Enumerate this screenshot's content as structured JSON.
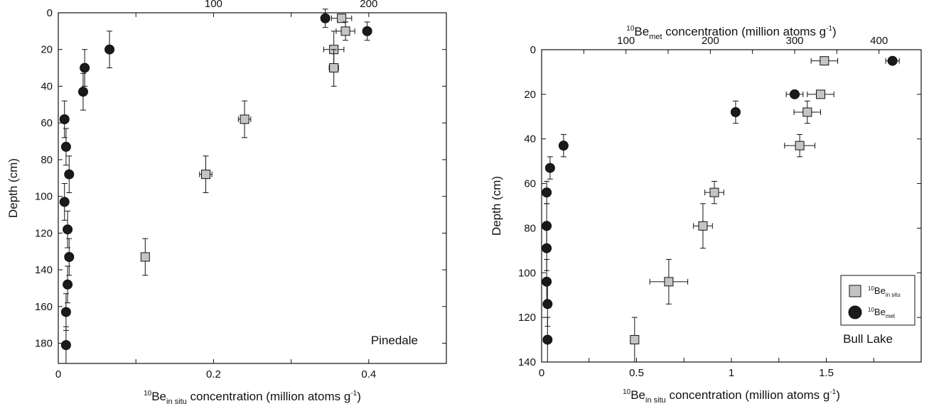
{
  "chart_data": [
    {
      "type": "scatter",
      "annotation": "Pinedale",
      "ylabel": "Depth (cm)",
      "xlabel": {
        "sup": "10",
        "base": "Be",
        "sub": "in situ",
        "text": " concentration (million atoms g",
        "exp": "-1",
        "close": ")"
      },
      "x2label": {
        "sup": "10",
        "base": "Be",
        "sub": "met",
        "text": " concentration (million atoms g",
        "exp": "-1",
        "close": ")"
      },
      "xlim": [
        0,
        0.5
      ],
      "x2lim": [
        0,
        250
      ],
      "ylim": [
        0,
        191
      ],
      "y_inverted": true,
      "x_ticks": [
        "0",
        "0.2",
        "0.4"
      ],
      "x_tick_values": [
        0,
        0.2,
        0.4
      ],
      "x_minor_ticks": [
        0.1,
        0.3,
        0.5
      ],
      "x2_ticks": [
        "100",
        "200"
      ],
      "x2_tick_values": [
        100,
        200
      ],
      "x2_minor_ticks": [
        50,
        150
      ],
      "y_ticks": [
        "0",
        "20",
        "40",
        "60",
        "80",
        "100",
        "120",
        "140",
        "160",
        "180"
      ],
      "y_tick_values": [
        0,
        20,
        40,
        60,
        80,
        100,
        120,
        140,
        160,
        180
      ],
      "series": [
        {
          "marker": "square",
          "color": "#c4c4c4",
          "axis": "bottom",
          "points": [
            {
              "x": 0.365,
              "y": 3,
              "xerr": 0.013,
              "yerr": 0
            },
            {
              "x": 0.37,
              "y": 10,
              "xerr": 0.012,
              "yerr": 5
            },
            {
              "x": 0.355,
              "y": 20,
              "xerr": 0.013,
              "yerr": 10
            },
            {
              "x": 0.355,
              "y": 30,
              "xerr": 0.006,
              "yerr": 10
            },
            {
              "x": 0.24,
              "y": 58,
              "xerr": 0.008,
              "yerr": 10
            },
            {
              "x": 0.19,
              "y": 88,
              "xerr": 0.008,
              "yerr": 10
            },
            {
              "x": 0.112,
              "y": 133,
              "xerr": 0,
              "yerr": 10
            }
          ]
        },
        {
          "marker": "circle",
          "color": "#1a1a1a",
          "axis": "top",
          "points": [
            {
              "x": 172,
              "y": 3,
              "xerr": 0,
              "yerr": 5
            },
            {
              "x": 199,
              "y": 10,
              "xerr": 0,
              "yerr": 5
            },
            {
              "x": 33,
              "y": 20,
              "xerr": 0,
              "yerr": 10
            },
            {
              "x": 17,
              "y": 30,
              "xerr": 0,
              "yerr": 10
            },
            {
              "x": 16,
              "y": 43,
              "xerr": 0,
              "yerr": 10
            },
            {
              "x": 4,
              "y": 58,
              "xerr": 0,
              "yerr": 10
            },
            {
              "x": 5,
              "y": 73,
              "xerr": 0,
              "yerr": 10
            },
            {
              "x": 7,
              "y": 88,
              "xerr": 0,
              "yerr": 10
            },
            {
              "x": 4,
              "y": 103,
              "xerr": 0,
              "yerr": 10
            },
            {
              "x": 6,
              "y": 118,
              "xerr": 0,
              "yerr": 10
            },
            {
              "x": 7,
              "y": 133,
              "xerr": 0,
              "yerr": 10
            },
            {
              "x": 6,
              "y": 148,
              "xerr": 0,
              "yerr": 10
            },
            {
              "x": 5,
              "y": 163,
              "xerr": 0,
              "yerr": 10
            },
            {
              "x": 5,
              "y": 181,
              "xerr": 0,
              "yerr": 10
            }
          ]
        }
      ]
    },
    {
      "type": "scatter",
      "annotation": "Bull Lake",
      "ylabel": "Depth (cm)",
      "xlabel": {
        "sup": "10",
        "base": "Be",
        "sub": "in situ",
        "text": " concentration (million atoms g",
        "exp": "-1",
        "close": ")"
      },
      "x2label": {
        "sup": "10",
        "base": "Be",
        "sub": "met",
        "text": " concentration (million atoms g",
        "exp": "-1",
        "close": ")"
      },
      "xlim": [
        0,
        2
      ],
      "x2lim": [
        0,
        450
      ],
      "ylim": [
        0,
        140
      ],
      "y_inverted": true,
      "x_ticks": [
        "0",
        "0.5",
        "1",
        "1.5"
      ],
      "x_tick_values": [
        0,
        0.5,
        1,
        1.5
      ],
      "x_minor_ticks": [
        0.25,
        0.75,
        1.25,
        1.75,
        2
      ],
      "x2_ticks": [
        "100",
        "200",
        "300",
        "400"
      ],
      "x2_tick_values": [
        100,
        200,
        300,
        400
      ],
      "x2_minor_ticks": [
        50,
        150,
        250,
        350
      ],
      "y_ticks": [
        "0",
        "20",
        "40",
        "60",
        "80",
        "100",
        "120",
        "140"
      ],
      "y_tick_values": [
        0,
        20,
        40,
        60,
        80,
        100,
        120,
        140
      ],
      "legend": {
        "position": "bottom-right",
        "entries": [
          {
            "marker": "square",
            "color": "#c4c4c4",
            "sup": "10",
            "base": "Be",
            "sub": "in situ"
          },
          {
            "marker": "circle",
            "color": "#1a1a1a",
            "sup": "10",
            "base": "Be",
            "sub": "met"
          }
        ]
      },
      "series": [
        {
          "marker": "square",
          "color": "#c4c4c4",
          "axis": "bottom",
          "points": [
            {
              "x": 1.49,
              "y": 5,
              "xerr": 0.07,
              "yerr": 0
            },
            {
              "x": 1.47,
              "y": 20,
              "xerr": 0.07,
              "yerr": 0
            },
            {
              "x": 1.4,
              "y": 28,
              "xerr": 0.07,
              "yerr": 5
            },
            {
              "x": 1.36,
              "y": 43,
              "xerr": 0.08,
              "yerr": 5
            },
            {
              "x": 0.91,
              "y": 64,
              "xerr": 0.05,
              "yerr": 5
            },
            {
              "x": 0.85,
              "y": 79,
              "xerr": 0.05,
              "yerr": 10
            },
            {
              "x": 0.67,
              "y": 104,
              "xerr": 0.1,
              "yerr": 10
            },
            {
              "x": 0.49,
              "y": 130,
              "xerr": 0.02,
              "yerr": 10
            }
          ]
        },
        {
          "marker": "circle",
          "color": "#1a1a1a",
          "axis": "top",
          "points": [
            {
              "x": 416,
              "y": 5,
              "xerr": 8,
              "yerr": 0
            },
            {
              "x": 300,
              "y": 20,
              "xerr": 10,
              "yerr": 0
            },
            {
              "x": 230,
              "y": 28,
              "xerr": 0,
              "yerr": 5
            },
            {
              "x": 26,
              "y": 43,
              "xerr": 0,
              "yerr": 5
            },
            {
              "x": 10,
              "y": 53,
              "xerr": 0,
              "yerr": 5
            },
            {
              "x": 6,
              "y": 64,
              "xerr": 0,
              "yerr": 5
            },
            {
              "x": 6,
              "y": 79,
              "xerr": 0,
              "yerr": 10
            },
            {
              "x": 6,
              "y": 89,
              "xerr": 0,
              "yerr": 10
            },
            {
              "x": 6,
              "y": 104,
              "xerr": 0,
              "yerr": 10
            },
            {
              "x": 7,
              "y": 114,
              "xerr": 0,
              "yerr": 10
            },
            {
              "x": 7,
              "y": 130,
              "xerr": 0,
              "yerr": 10
            }
          ]
        }
      ]
    }
  ]
}
